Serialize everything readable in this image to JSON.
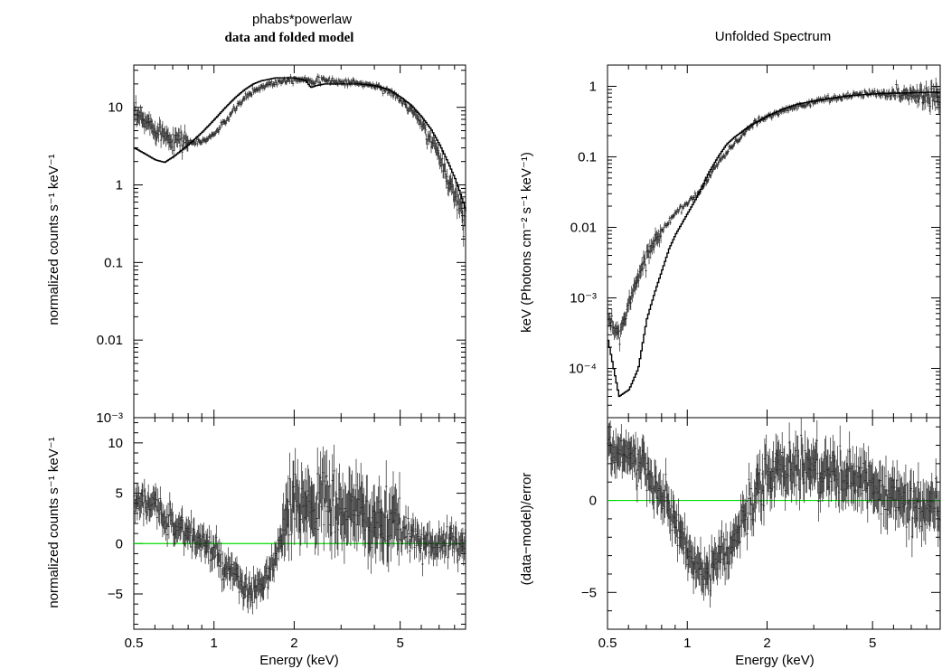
{
  "chart_data": [
    {
      "type": "scatter",
      "panel": "left",
      "title": "phabs*powerlaw",
      "subtitle": "data and folded model",
      "xlabel": "Energy (keV)",
      "x_ticks": [
        "0.5",
        "1",
        "2",
        "5"
      ],
      "x_scale": "log",
      "xlim": [
        0.5,
        8.8
      ],
      "top": {
        "ylabel": "normalized counts s⁻¹ keV⁻¹",
        "y_scale": "log",
        "ylim": [
          0.001,
          35
        ],
        "y_ticks": [
          {
            "v": 10,
            "label": "10"
          },
          {
            "v": 1,
            "label": "1"
          },
          {
            "v": 0.1,
            "label": "0.1"
          },
          {
            "v": 0.01,
            "label": "0.01"
          },
          {
            "v": 0.001,
            "label": "10⁻³"
          }
        ],
        "data": {
          "x": [
            0.5,
            0.55,
            0.6,
            0.65,
            0.7,
            0.75,
            0.8,
            0.85,
            0.9,
            0.95,
            1.0,
            1.1,
            1.2,
            1.3,
            1.4,
            1.5,
            1.6,
            1.7,
            1.8,
            1.9,
            2.0,
            2.2,
            2.4,
            2.6,
            2.8,
            3.0,
            3.3,
            3.6,
            4.0,
            4.4,
            4.8,
            5.2,
            5.6,
            6.0,
            6.5,
            7.0,
            7.5,
            8.0,
            8.4,
            8.8
          ],
          "y": [
            8.0,
            6.5,
            5.5,
            4.5,
            4.0,
            3.8,
            3.6,
            3.5,
            3.6,
            4.0,
            4.5,
            6.5,
            9.5,
            13,
            16,
            18,
            20,
            21,
            22,
            23,
            23,
            23,
            22,
            22,
            22,
            21,
            21,
            20,
            19,
            17,
            14,
            11,
            8.5,
            6.0,
            3.8,
            2.3,
            1.3,
            0.75,
            0.5,
            0.33
          ]
        },
        "model": {
          "x": [
            0.5,
            0.55,
            0.6,
            0.65,
            0.7,
            0.8,
            0.9,
            1.0,
            1.1,
            1.2,
            1.3,
            1.4,
            1.5,
            1.6,
            1.7,
            1.8,
            2.0,
            2.2,
            2.3,
            2.4,
            2.6,
            3.0,
            3.5,
            4.0,
            4.5,
            5.0,
            5.5,
            6.0,
            6.5,
            7.0,
            7.5,
            8.0,
            8.4,
            8.8
          ],
          "y": [
            3.0,
            2.5,
            2.1,
            1.95,
            2.3,
            3.3,
            4.8,
            7.0,
            10,
            13.5,
            17,
            20,
            22,
            23,
            24,
            24,
            24,
            22,
            18,
            19,
            20,
            20,
            20,
            19,
            17,
            13.5,
            10.5,
            7.5,
            5.2,
            3.3,
            2.0,
            1.2,
            0.75,
            0.45
          ]
        }
      },
      "bottom": {
        "ylabel": "normalized counts s⁻¹ keV⁻¹",
        "ylim": [
          -8.5,
          12.5
        ],
        "y_ticks": [
          {
            "v": 10,
            "label": "10"
          },
          {
            "v": 5,
            "label": "5"
          },
          {
            "v": 0,
            "label": "0"
          },
          {
            "v": -5,
            "label": "−5"
          }
        ],
        "zero_line_color": "#00dd00",
        "residuals": {
          "x": [
            0.5,
            0.55,
            0.6,
            0.65,
            0.7,
            0.75,
            0.8,
            0.85,
            0.9,
            0.95,
            1.0,
            1.05,
            1.1,
            1.2,
            1.3,
            1.4,
            1.5,
            1.6,
            1.7,
            1.8,
            1.9,
            2.0,
            2.2,
            2.4,
            2.6,
            2.8,
            3.0,
            3.3,
            3.6,
            4.0,
            4.4,
            4.8,
            5.2,
            5.6,
            6.0,
            6.5,
            7.0,
            7.5,
            8.0,
            8.5
          ],
          "y": [
            5,
            4,
            3.5,
            2.8,
            2.2,
            1.5,
            1.0,
            0.5,
            0.2,
            -0.3,
            -1.0,
            -1.8,
            -2.5,
            -3.5,
            -4.5,
            -5.0,
            -4.2,
            -3.0,
            -1.5,
            0.5,
            2.5,
            3.5,
            4.0,
            4.5,
            4.0,
            3.5,
            3.5,
            3.0,
            2.8,
            2.2,
            1.8,
            1.4,
            1.0,
            0.7,
            0.4,
            0.2,
            0.0,
            -0.1,
            -0.1,
            0.0
          ]
        }
      }
    },
    {
      "type": "scatter",
      "panel": "right",
      "title": "Unfolded Spectrum",
      "xlabel": "Energy (keV)",
      "x_ticks": [
        "0.5",
        "1",
        "2",
        "5"
      ],
      "x_scale": "log",
      "xlim": [
        0.5,
        9.0
      ],
      "top": {
        "ylabel": "keV (Photons cm⁻² s⁻¹ keV⁻¹)",
        "y_scale": "log",
        "ylim": [
          2e-05,
          2.0
        ],
        "y_ticks": [
          {
            "v": 1,
            "label": "1"
          },
          {
            "v": 0.1,
            "label": "0.1"
          },
          {
            "v": 0.01,
            "label": "0.01"
          },
          {
            "v": 0.001,
            "label": "10⁻³"
          },
          {
            "v": 0.0001,
            "label": "10⁻⁴"
          }
        ],
        "data": {
          "x": [
            0.5,
            0.55,
            0.6,
            0.65,
            0.7,
            0.75,
            0.8,
            0.85,
            0.9,
            1.0,
            1.1,
            1.2,
            1.3,
            1.4,
            1.5,
            1.6,
            1.8,
            2.0,
            2.3,
            2.6,
            3.0,
            3.5,
            4.0,
            4.5,
            5.0,
            5.5,
            6.0,
            6.5,
            7.0,
            8.0,
            9.0
          ],
          "y": [
            0.0006,
            0.0003,
            0.0007,
            0.002,
            0.004,
            0.006,
            0.009,
            0.012,
            0.016,
            0.022,
            0.03,
            0.05,
            0.08,
            0.11,
            0.15,
            0.2,
            0.3,
            0.37,
            0.45,
            0.52,
            0.6,
            0.68,
            0.72,
            0.78,
            0.8,
            0.8,
            0.8,
            0.78,
            0.76,
            0.74,
            0.72
          ]
        },
        "model": {
          "x": [
            0.5,
            0.55,
            0.6,
            0.65,
            0.7,
            0.75,
            0.8,
            0.85,
            0.9,
            1.0,
            1.1,
            1.2,
            1.3,
            1.4,
            1.5,
            1.7,
            2.0,
            2.3,
            2.6,
            3.0,
            3.5,
            4.0,
            5.0,
            6.0,
            7.0,
            8.0,
            9.0
          ],
          "y": [
            0.00025,
            4e-05,
            5e-05,
            0.0001,
            0.0005,
            0.0012,
            0.0025,
            0.005,
            0.008,
            0.016,
            0.03,
            0.06,
            0.1,
            0.15,
            0.19,
            0.27,
            0.38,
            0.48,
            0.56,
            0.62,
            0.68,
            0.73,
            0.78,
            0.8,
            0.81,
            0.82,
            0.83
          ]
        }
      },
      "bottom": {
        "ylabel": "(data−model)/error",
        "ylim": [
          -7,
          4.5
        ],
        "y_ticks": [
          {
            "v": 0,
            "label": "0"
          },
          {
            "v": -5,
            "label": "−5"
          }
        ],
        "zero_line_color": "#00dd00",
        "residuals": {
          "x": [
            0.5,
            0.55,
            0.6,
            0.65,
            0.7,
            0.75,
            0.8,
            0.85,
            0.9,
            0.95,
            1.0,
            1.05,
            1.1,
            1.2,
            1.3,
            1.4,
            1.5,
            1.6,
            1.7,
            1.8,
            1.9,
            2.0,
            2.2,
            2.4,
            2.6,
            2.8,
            3.0,
            3.3,
            3.6,
            4.0,
            4.4,
            4.8,
            5.2,
            5.6,
            6.0,
            6.5,
            7.0,
            7.5,
            8.0,
            8.5,
            9.0
          ],
          "y": [
            3,
            2.8,
            2.5,
            2.0,
            1.5,
            0.8,
            0.3,
            -0.5,
            -1.2,
            -2.0,
            -2.8,
            -3.5,
            -3.8,
            -4.0,
            -3.5,
            -3.0,
            -2.2,
            -1.2,
            -0.5,
            0.2,
            0.8,
            1.2,
            1.6,
            1.8,
            2.0,
            1.9,
            1.8,
            1.6,
            1.4,
            1.2,
            1.0,
            0.8,
            0.5,
            0.3,
            0.1,
            -0.1,
            -0.2,
            -0.3,
            -0.4,
            -0.3,
            -0.2
          ]
        }
      }
    }
  ]
}
